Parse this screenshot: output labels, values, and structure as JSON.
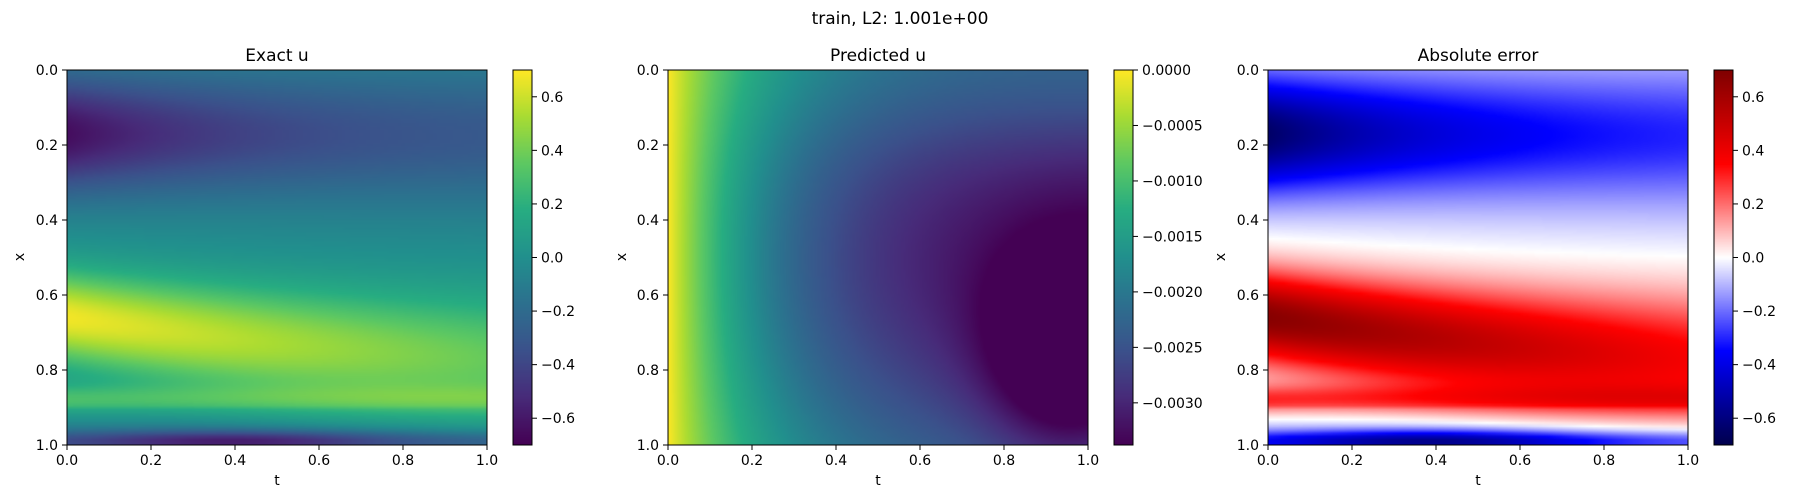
{
  "figure": {
    "suptitle": "train, L2: 1.001e+00"
  },
  "chart_data": [
    {
      "type": "heatmap",
      "title": "Exact u",
      "xlabel": "t",
      "ylabel": "x",
      "colormap": "viridis",
      "xlim": [
        0.0,
        1.0
      ],
      "ylim": [
        1.0,
        0.0
      ],
      "x_ticks": [
        "0.0",
        "0.2",
        "0.4",
        "0.6",
        "0.8",
        "1.0"
      ],
      "y_ticks": [
        "0.0",
        "0.2",
        "0.4",
        "0.6",
        "0.8",
        "1.0"
      ],
      "clim": [
        -0.7,
        0.7
      ],
      "colorbar_ticks": [
        {
          "value": 0.6,
          "label": "0.6"
        },
        {
          "value": 0.4,
          "label": "0.4"
        },
        {
          "value": 0.2,
          "label": "0.2"
        },
        {
          "value": 0.0,
          "label": "0.0"
        },
        {
          "value": -0.2,
          "label": "−0.2"
        },
        {
          "value": -0.4,
          "label": "−0.4"
        },
        {
          "value": -0.6,
          "label": "−0.6"
        }
      ]
    },
    {
      "type": "heatmap",
      "title": "Predicted u",
      "xlabel": "t",
      "ylabel": "x",
      "colormap": "viridis",
      "xlim": [
        0.0,
        1.0
      ],
      "ylim": [
        1.0,
        0.0
      ],
      "x_ticks": [
        "0.0",
        "0.2",
        "0.4",
        "0.6",
        "0.8",
        "1.0"
      ],
      "y_ticks": [
        "0.0",
        "0.2",
        "0.4",
        "0.6",
        "0.8",
        "1.0"
      ],
      "clim": [
        -0.00338,
        0.0
      ],
      "colorbar_ticks": [
        {
          "value": 0.0,
          "label": "0.0000"
        },
        {
          "value": -0.0005,
          "label": "−0.0005"
        },
        {
          "value": -0.001,
          "label": "−0.0010"
        },
        {
          "value": -0.0015,
          "label": "−0.0015"
        },
        {
          "value": -0.002,
          "label": "−0.0020"
        },
        {
          "value": -0.0025,
          "label": "−0.0025"
        },
        {
          "value": -0.003,
          "label": "−0.0030"
        }
      ]
    },
    {
      "type": "heatmap",
      "title": "Absolute error",
      "xlabel": "t",
      "ylabel": "x",
      "colormap": "seismic",
      "xlim": [
        0.0,
        1.0
      ],
      "ylim": [
        1.0,
        0.0
      ],
      "x_ticks": [
        "0.0",
        "0.2",
        "0.4",
        "0.6",
        "0.8",
        "1.0"
      ],
      "y_ticks": [
        "0.0",
        "0.2",
        "0.4",
        "0.6",
        "0.8",
        "1.0"
      ],
      "clim": [
        -0.7,
        0.7
      ],
      "colorbar_ticks": [
        {
          "value": 0.6,
          "label": "0.6"
        },
        {
          "value": 0.4,
          "label": "0.4"
        },
        {
          "value": 0.2,
          "label": "0.2"
        },
        {
          "value": 0.0,
          "label": "0.0"
        },
        {
          "value": -0.2,
          "label": "−0.2"
        },
        {
          "value": -0.4,
          "label": "−0.4"
        },
        {
          "value": -0.6,
          "label": "−0.6"
        }
      ]
    }
  ]
}
